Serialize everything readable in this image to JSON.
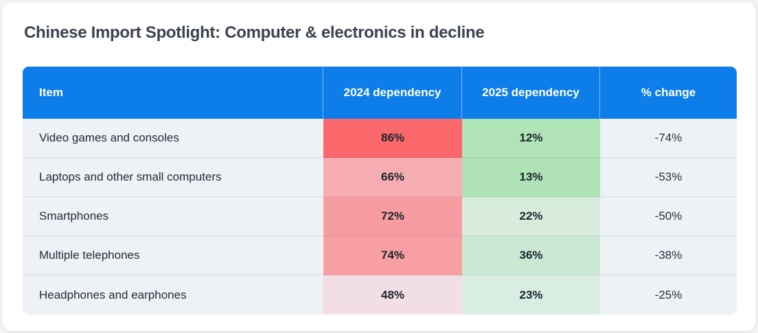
{
  "card": {
    "title": "Chinese Import Spotlight: Computer & electronics in decline"
  },
  "colors": {
    "header_background": "#0d7de9",
    "header_text": "#ffffff",
    "neutral_cell_background": "#eef1f6",
    "title_text": "#3b434e",
    "value_text": "#1b2430"
  },
  "table": {
    "headers": {
      "item": "Item",
      "dep2024": "2024 dependency",
      "dep2025": "2025 dependency",
      "change": "% change"
    },
    "rows": [
      {
        "item": "Video games and consoles",
        "dep2024": "86%",
        "dep2024_color": "#fa686b",
        "dep2025": "12%",
        "dep2025_color": "#b0e3b6",
        "change": "-74%"
      },
      {
        "item": "Laptops and other small computers",
        "dep2024": "66%",
        "dep2024_color": "#f5adb1",
        "dep2025": "13%",
        "dep2025_color": "#afe2b5",
        "change": "-53%"
      },
      {
        "item": "Smartphones",
        "dep2024": "72%",
        "dep2024_color": "#f79da1",
        "dep2025": "22%",
        "dep2025_color": "#d7ecdd",
        "change": "-50%"
      },
      {
        "item": "Multiple telephones",
        "dep2024": "74%",
        "dep2024_color": "#f89fa3",
        "dep2025": "36%",
        "dep2025_color": "#cbe9d2",
        "change": "-38%"
      },
      {
        "item": "Headphones and earphones",
        "dep2024": "48%",
        "dep2024_color": "#f1dfe5",
        "dep2025": "23%",
        "dep2025_color": "#d9eee2",
        "change": "-25%"
      }
    ]
  },
  "chart_data": {
    "type": "table",
    "title": "Chinese Import Spotlight: Computer & electronics in decline",
    "columns": [
      "Item",
      "2024 dependency",
      "2025 dependency",
      "% change"
    ],
    "rows": [
      [
        "Video games and consoles",
        86,
        12,
        -74
      ],
      [
        "Laptops and other small computers",
        66,
        13,
        -53
      ],
      [
        "Smartphones",
        72,
        22,
        -50
      ],
      [
        "Multiple telephones",
        74,
        36,
        -38
      ],
      [
        "Headphones and earphones",
        48,
        23,
        -25
      ]
    ],
    "units": "percent",
    "heatmap": {
      "2024 dependency": "red scale, darker = higher dependency",
      "2025 dependency": "green scale, darker = higher dependency"
    },
    "layout_hints": {
      "header_style": "blue banner with white bold text",
      "item_column_alignment": "left",
      "value_alignment": "center",
      "grid": "horizontal row dividers only"
    }
  }
}
